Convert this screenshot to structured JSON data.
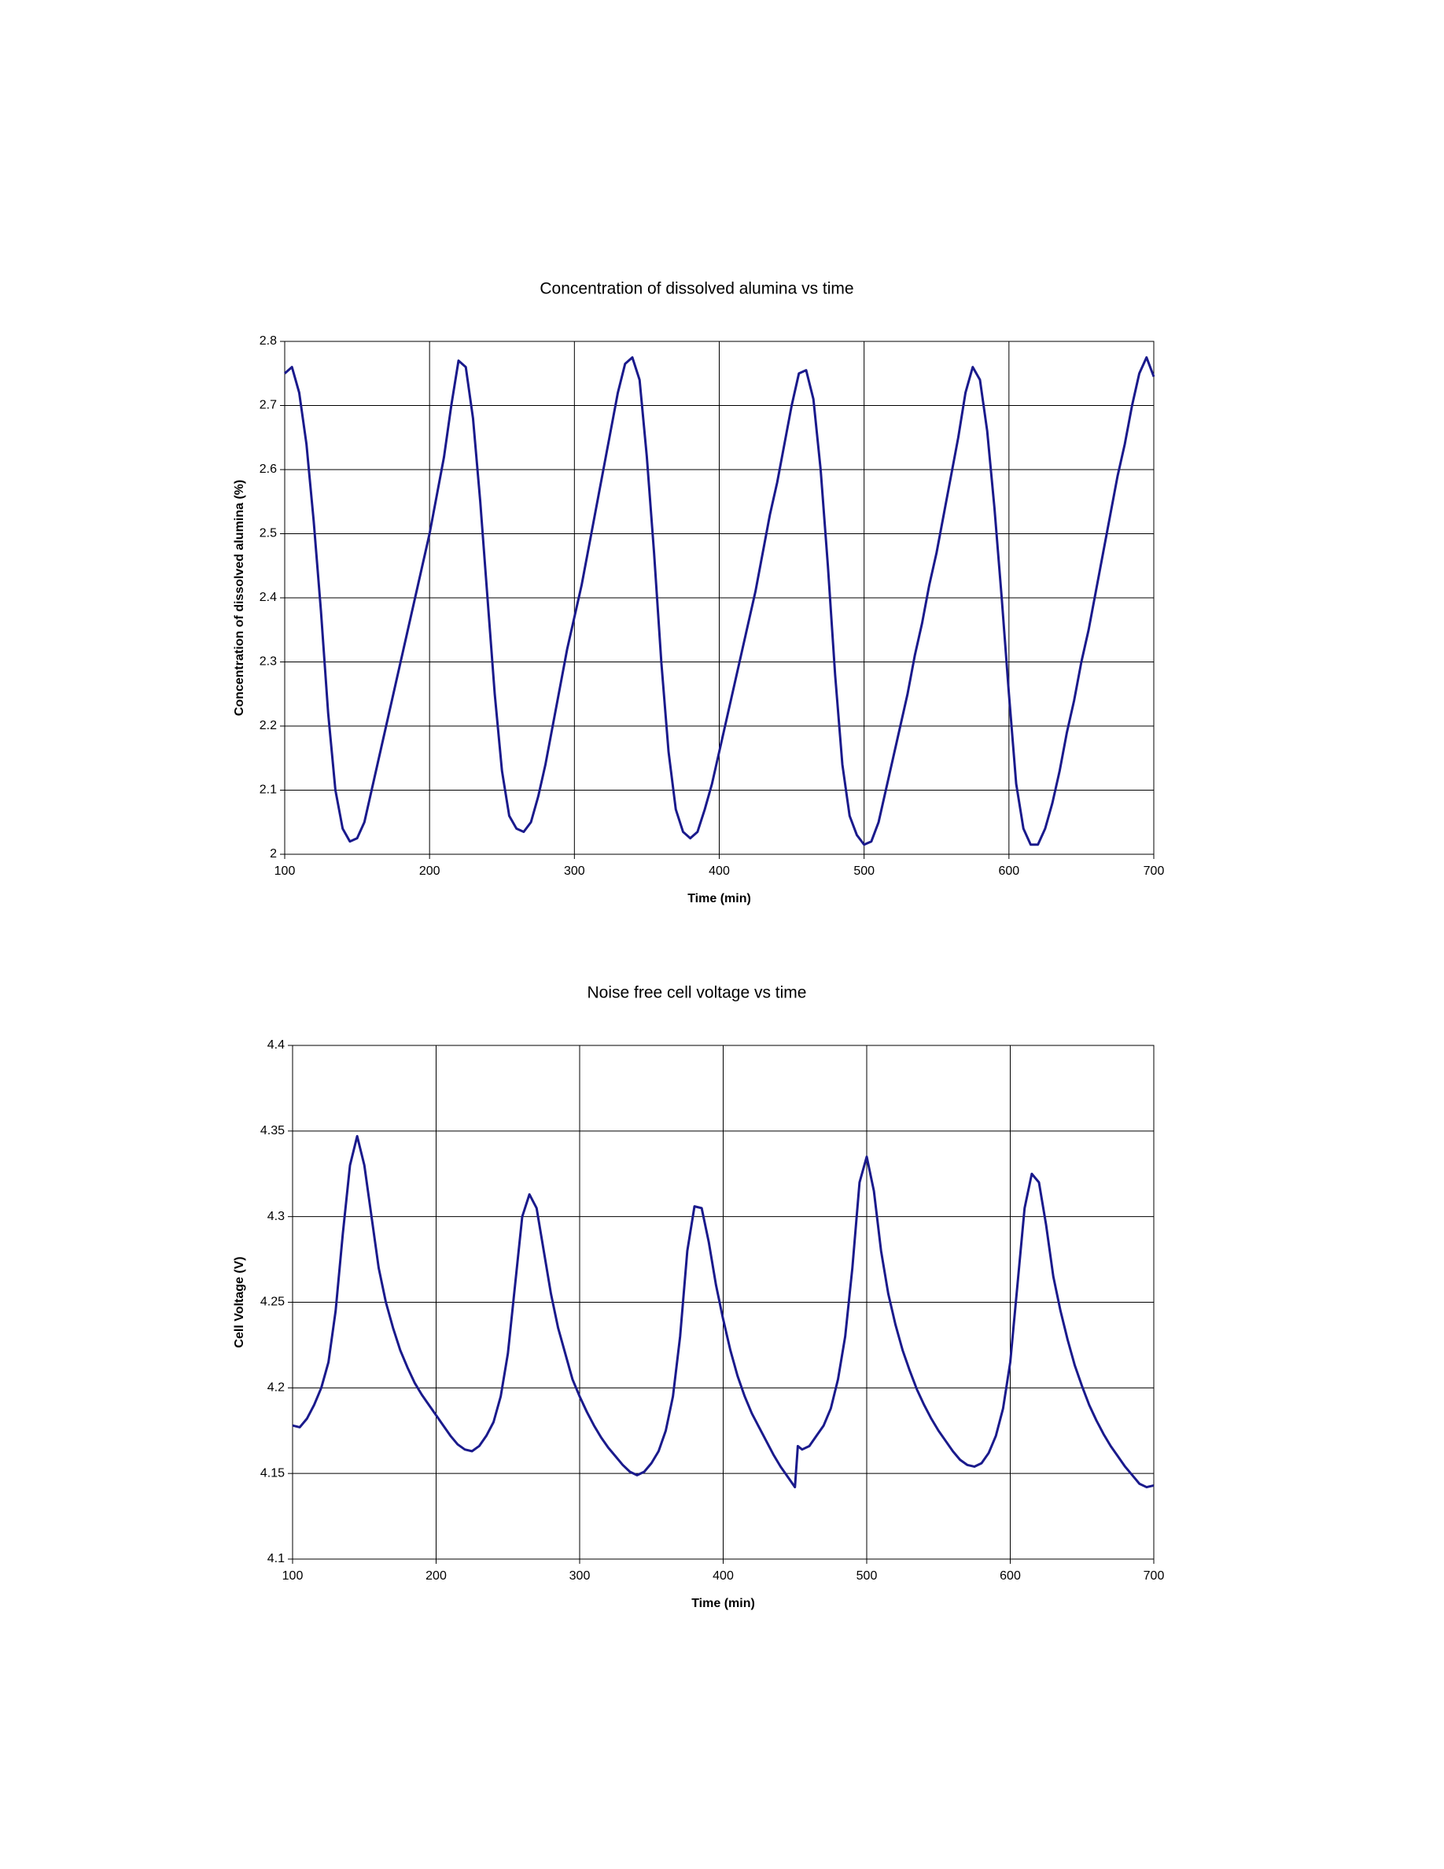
{
  "chart_data": [
    {
      "type": "line",
      "title": "Concentration of dissolved alumina vs time",
      "x_label": "Time (min)",
      "y_label": "Concentration of dissolved alumina (%)",
      "x": [
        100,
        105,
        110,
        115,
        120,
        125,
        130,
        135,
        140,
        145,
        150,
        155,
        160,
        165,
        170,
        175,
        180,
        185,
        190,
        195,
        200,
        205,
        210,
        215,
        220,
        225,
        230,
        235,
        240,
        245,
        250,
        255,
        260,
        265,
        270,
        275,
        280,
        285,
        290,
        295,
        300,
        305,
        310,
        315,
        320,
        325,
        330,
        335,
        340,
        345,
        350,
        355,
        360,
        365,
        370,
        375,
        380,
        385,
        390,
        395,
        400,
        405,
        410,
        415,
        420,
        425,
        430,
        435,
        440,
        445,
        450,
        455,
        460,
        465,
        470,
        475,
        480,
        485,
        490,
        495,
        500,
        505,
        510,
        515,
        520,
        525,
        530,
        535,
        540,
        545,
        550,
        555,
        560,
        565,
        570,
        575,
        580,
        585,
        590,
        595,
        600,
        605,
        610,
        615,
        620,
        625,
        630,
        635,
        640,
        645,
        650,
        655,
        660,
        665,
        670,
        675,
        680,
        685,
        690,
        695,
        700
      ],
      "color": "#1a1a8c",
      "values": [
        2.75,
        2.76,
        2.72,
        2.64,
        2.52,
        2.38,
        2.22,
        2.1,
        2.04,
        2.02,
        2.025,
        2.05,
        2.1,
        2.15,
        2.2,
        2.25,
        2.3,
        2.35,
        2.4,
        2.45,
        2.5,
        2.56,
        2.62,
        2.7,
        2.77,
        2.76,
        2.68,
        2.55,
        2.4,
        2.25,
        2.13,
        2.06,
        2.04,
        2.035,
        2.05,
        2.09,
        2.14,
        2.2,
        2.26,
        2.32,
        2.37,
        2.42,
        2.48,
        2.54,
        2.6,
        2.66,
        2.72,
        2.765,
        2.775,
        2.74,
        2.62,
        2.47,
        2.3,
        2.16,
        2.07,
        2.035,
        2.025,
        2.035,
        2.07,
        2.11,
        2.16,
        2.21,
        2.26,
        2.31,
        2.36,
        2.41,
        2.47,
        2.53,
        2.58,
        2.64,
        2.7,
        2.75,
        2.755,
        2.71,
        2.6,
        2.45,
        2.28,
        2.14,
        2.06,
        2.03,
        2.015,
        2.02,
        2.05,
        2.1,
        2.15,
        2.2,
        2.25,
        2.31,
        2.36,
        2.42,
        2.47,
        2.53,
        2.59,
        2.65,
        2.72,
        2.76,
        2.74,
        2.66,
        2.54,
        2.4,
        2.25,
        2.11,
        2.04,
        2.015,
        2.015,
        2.04,
        2.08,
        2.13,
        2.19,
        2.24,
        2.3,
        2.35,
        2.41,
        2.47,
        2.53,
        2.59,
        2.64,
        2.7,
        2.75,
        2.775,
        2.745
      ],
      "xlim": [
        100,
        700
      ],
      "xticks": [
        100,
        200,
        300,
        400,
        500,
        600,
        700
      ],
      "ylim": [
        2,
        2.8
      ],
      "yticks": [
        2,
        2.1,
        2.2,
        2.3,
        2.4,
        2.5,
        2.6,
        2.7,
        2.8
      ],
      "grid": true
    },
    {
      "type": "line",
      "title": "Noise free cell voltage vs time",
      "x_label": "Time (min)",
      "y_label": "Cell Voltage (V)",
      "x": [
        100,
        105,
        110,
        115,
        120,
        125,
        130,
        135,
        140,
        145,
        150,
        155,
        160,
        165,
        170,
        175,
        180,
        185,
        190,
        195,
        200,
        205,
        210,
        215,
        220,
        225,
        230,
        235,
        240,
        245,
        250,
        255,
        260,
        265,
        270,
        275,
        280,
        285,
        290,
        295,
        300,
        305,
        310,
        315,
        320,
        325,
        330,
        335,
        340,
        345,
        350,
        355,
        360,
        365,
        370,
        375,
        380,
        385,
        390,
        395,
        400,
        405,
        410,
        415,
        420,
        425,
        430,
        435,
        440,
        445,
        450,
        452,
        455,
        460,
        465,
        470,
        475,
        480,
        485,
        490,
        495,
        500,
        505,
        510,
        515,
        520,
        525,
        530,
        535,
        540,
        545,
        550,
        555,
        560,
        565,
        570,
        575,
        580,
        585,
        590,
        595,
        600,
        605,
        610,
        615,
        620,
        625,
        630,
        635,
        640,
        645,
        650,
        655,
        660,
        665,
        670,
        675,
        680,
        685,
        690,
        695,
        700
      ],
      "color": "#1a1a8c",
      "values": [
        4.178,
        4.177,
        4.182,
        4.19,
        4.2,
        4.215,
        4.245,
        4.29,
        4.33,
        4.347,
        4.33,
        4.3,
        4.27,
        4.25,
        4.235,
        4.222,
        4.212,
        4.203,
        4.196,
        4.19,
        4.184,
        4.178,
        4.172,
        4.167,
        4.164,
        4.163,
        4.166,
        4.172,
        4.18,
        4.195,
        4.22,
        4.26,
        4.3,
        4.313,
        4.305,
        4.28,
        4.255,
        4.235,
        4.22,
        4.205,
        4.195,
        4.186,
        4.178,
        4.171,
        4.165,
        4.16,
        4.155,
        4.151,
        4.149,
        4.151,
        4.156,
        4.163,
        4.175,
        4.195,
        4.23,
        4.28,
        4.306,
        4.305,
        4.285,
        4.26,
        4.24,
        4.222,
        4.207,
        4.195,
        4.185,
        4.177,
        4.169,
        4.161,
        4.154,
        4.148,
        4.142,
        4.166,
        4.164,
        4.166,
        4.172,
        4.178,
        4.188,
        4.205,
        4.23,
        4.27,
        4.32,
        4.335,
        4.315,
        4.28,
        4.255,
        4.237,
        4.222,
        4.21,
        4.199,
        4.19,
        4.182,
        4.175,
        4.169,
        4.163,
        4.158,
        4.155,
        4.154,
        4.156,
        4.162,
        4.172,
        4.188,
        4.215,
        4.26,
        4.305,
        4.325,
        4.32,
        4.295,
        4.265,
        4.245,
        4.228,
        4.213,
        4.201,
        4.19,
        4.181,
        4.173,
        4.166,
        4.16,
        4.154,
        4.149,
        4.144,
        4.142,
        4.143
      ],
      "xlim": [
        100,
        700
      ],
      "xticks": [
        100,
        200,
        300,
        400,
        500,
        600,
        700
      ],
      "ylim": [
        4.1,
        4.4
      ],
      "yticks": [
        4.1,
        4.15,
        4.2,
        4.25,
        4.3,
        4.35,
        4.4
      ],
      "grid": true
    }
  ]
}
